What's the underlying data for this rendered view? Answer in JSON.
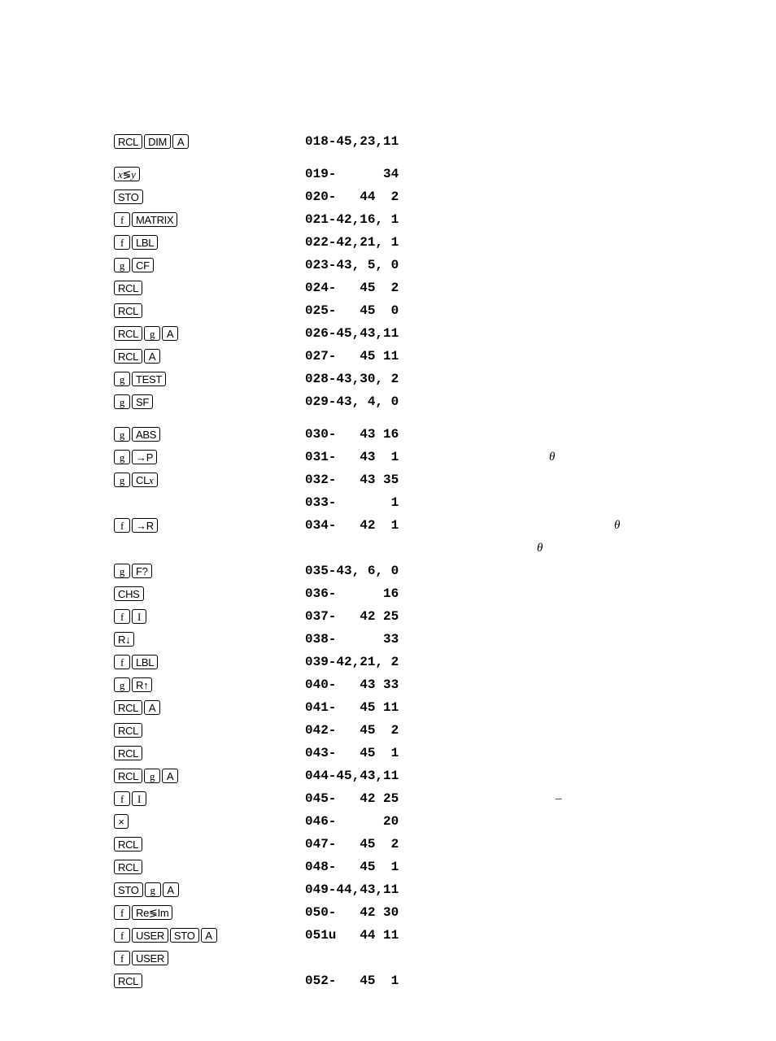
{
  "program": {
    "lines": [
      {
        "keys": [
          "RCL",
          "DIM",
          "A"
        ],
        "code": "018-45,23,11",
        "note": ""
      },
      {
        "spacer": true
      },
      {
        "keys": [
          "x≷y"
        ],
        "code": "019-      34",
        "note": ""
      },
      {
        "keys": [
          "STO"
        ],
        "code": "020-   44  2",
        "note": ""
      },
      {
        "keys": [
          "f",
          "MATRIX"
        ],
        "code": "021-42,16, 1",
        "note": ""
      },
      {
        "keys": [
          "f",
          "LBL"
        ],
        "code": "022-42,21, 1",
        "note": ""
      },
      {
        "keys": [
          "g",
          "CF"
        ],
        "code": "023-43, 5, 0",
        "note": ""
      },
      {
        "keys": [
          "RCL"
        ],
        "code": "024-   45  2",
        "note": ""
      },
      {
        "keys": [
          "RCL"
        ],
        "code": "025-   45  0",
        "note": ""
      },
      {
        "keys": [
          "RCL",
          "g",
          "A"
        ],
        "code": "026-45,43,11",
        "note": ""
      },
      {
        "keys": [
          "RCL",
          "A"
        ],
        "code": "027-   45 11",
        "note": ""
      },
      {
        "keys": [
          "g",
          "TEST"
        ],
        "code": "028-43,30, 2",
        "note": ""
      },
      {
        "keys": [
          "g",
          "SF"
        ],
        "code": "029-43, 4, 0",
        "note": ""
      },
      {
        "spacer": true
      },
      {
        "keys": [
          "g",
          "ABS"
        ],
        "code": "030-   43 16",
        "note": ""
      },
      {
        "keys": [
          "g",
          "→P"
        ],
        "code": "031-   43  1",
        "note": "θ",
        "notepad": 130
      },
      {
        "keys": [
          "g",
          "CLx"
        ],
        "code": "032-   43 35",
        "note": ""
      },
      {
        "keys": [],
        "code": "033-       1",
        "note": ""
      },
      {
        "keys": [
          "f",
          "→R"
        ],
        "code": "034-   42  1",
        "note": "θ",
        "notepad": 210
      },
      {
        "keys": [],
        "code": "",
        "note": "θ",
        "notepad": 115
      },
      {
        "keys": [
          "g",
          "F?"
        ],
        "code": "035-43, 6, 0",
        "note": ""
      },
      {
        "keys": [
          "CHS"
        ],
        "code": "036-      16",
        "note": ""
      },
      {
        "keys": [
          "f",
          "I"
        ],
        "code": "037-   42 25",
        "note": ""
      },
      {
        "keys": [
          "R↓"
        ],
        "code": "038-      33",
        "note": ""
      },
      {
        "keys": [
          "f",
          "LBL"
        ],
        "code": "039-42,21, 2",
        "note": ""
      },
      {
        "keys": [
          "g",
          "R↑"
        ],
        "code": "040-   43 33",
        "note": ""
      },
      {
        "keys": [
          "RCL",
          "A"
        ],
        "code": "041-   45 11",
        "note": ""
      },
      {
        "keys": [
          "RCL"
        ],
        "code": "042-   45  2",
        "note": ""
      },
      {
        "keys": [
          "RCL"
        ],
        "code": "043-   45  1",
        "note": ""
      },
      {
        "keys": [
          "RCL",
          "g",
          "A"
        ],
        "code": "044-45,43,11",
        "note": ""
      },
      {
        "keys": [
          "f",
          "I"
        ],
        "code": "045-   42 25",
        "note": "–",
        "notepad": 138
      },
      {
        "keys": [
          "×"
        ],
        "code": "046-      20",
        "note": ""
      },
      {
        "keys": [
          "RCL"
        ],
        "code": "047-   45  2",
        "note": ""
      },
      {
        "keys": [
          "RCL"
        ],
        "code": "048-   45  1",
        "note": ""
      },
      {
        "keys": [
          "STO",
          "g",
          "A"
        ],
        "code": "049-44,43,11",
        "note": ""
      },
      {
        "keys": [
          "f",
          "Re≷Im"
        ],
        "code": "050-   42 30",
        "note": ""
      },
      {
        "keys": [
          "f",
          "USER",
          "STO",
          "A"
        ],
        "code": "051u   44 11",
        "note": ""
      },
      {
        "keys": [
          "f",
          "USER"
        ],
        "code": "",
        "note": ""
      },
      {
        "keys": [
          "RCL"
        ],
        "code": "052-   45  1",
        "note": ""
      }
    ]
  }
}
